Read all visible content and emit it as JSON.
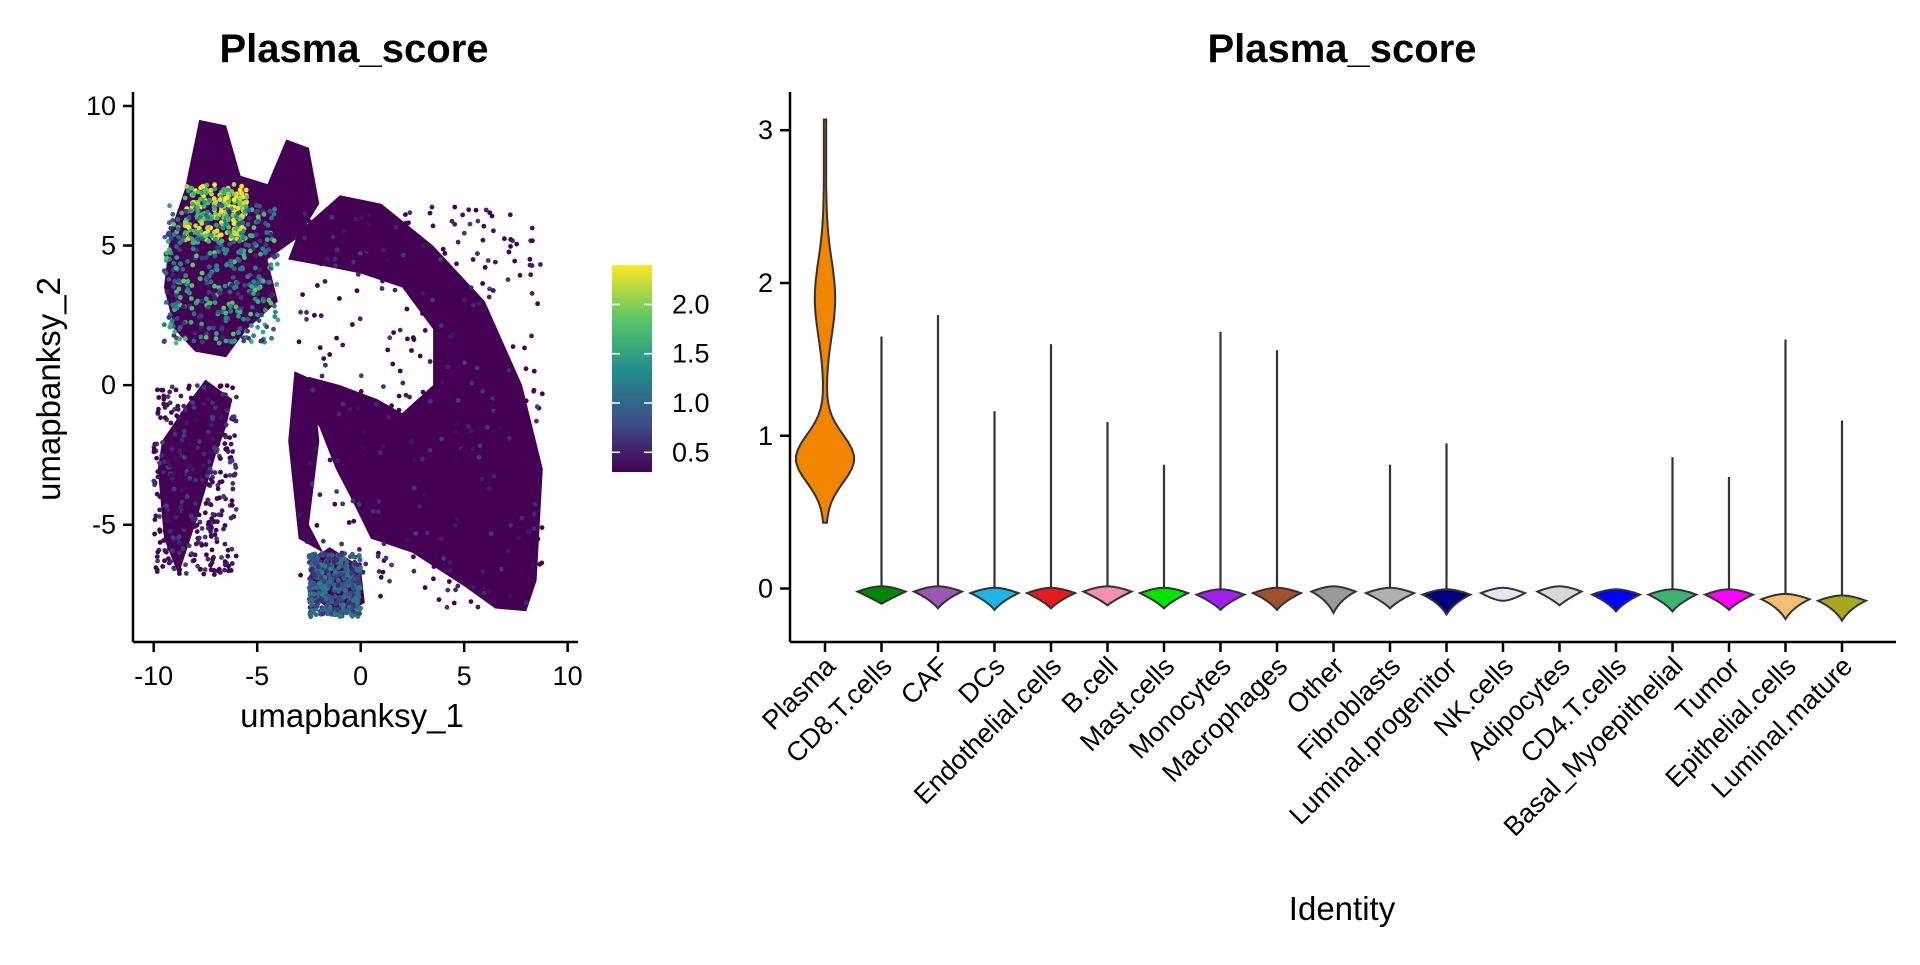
{
  "chart_data": [
    {
      "type": "scatter",
      "title": "Plasma_score",
      "xlabel": "umapbanksy_1",
      "ylabel": "umapbanksy_2",
      "xlim": [
        -11,
        10.5
      ],
      "ylim": [
        -9.2,
        10.5
      ],
      "x_ticks": [
        -10,
        -5,
        0,
        5,
        10
      ],
      "x_tick_labels": [
        "-10",
        "-5",
        "0",
        "5",
        "10"
      ],
      "y_ticks": [
        -5,
        0,
        5,
        10
      ],
      "y_tick_labels": [
        "-5",
        "0",
        "5",
        "10"
      ],
      "colorbar": {
        "colormap": "viridis",
        "range": [
          0.3,
          2.4
        ],
        "ticks": [
          0.5,
          1.0,
          1.5,
          2.0
        ],
        "tick_labels": [
          "0.5",
          "1.0",
          "1.5",
          "2.0"
        ]
      },
      "colors": {
        "low": "#440154",
        "mid_low": "#3b528b",
        "mid": "#21918c",
        "mid_high": "#5ec962",
        "high": "#fde725"
      },
      "regions": [
        {
          "name": "left-high-cluster",
          "x_range": [
            -8.5,
            -5.5
          ],
          "y_range": [
            5.2,
            7.2
          ],
          "score": 2.1
        },
        {
          "name": "left-upper-band",
          "x_range": [
            -9.5,
            -4.0
          ],
          "y_range": [
            1.5,
            6.5
          ],
          "score": 1.2
        },
        {
          "name": "main-arc",
          "x_range": [
            -3.0,
            8.8
          ],
          "y_range": [
            -8.0,
            6.5
          ],
          "score": 0.35
        },
        {
          "name": "left-arm",
          "x_range": [
            -10.0,
            -6.0
          ],
          "y_range": [
            -6.8,
            0.0
          ],
          "score": 0.4
        },
        {
          "name": "bottom-blob",
          "x_range": [
            -2.5,
            0.0
          ],
          "y_range": [
            -8.3,
            -6.0
          ],
          "score": 0.9
        }
      ]
    },
    {
      "type": "violin",
      "title": "Plasma_score",
      "xlabel": "Identity",
      "ylabel": "",
      "ylim": [
        -0.35,
        3.25
      ],
      "y_ticks": [
        0,
        1,
        2,
        3
      ],
      "y_tick_labels": [
        "0",
        "1",
        "2",
        "3"
      ],
      "categories": [
        "Plasma",
        "CD8.T.cells",
        "CAF",
        "DCs",
        "Endothelial.cells",
        "B.cell",
        "Mast.cells",
        "Monocytes",
        "Macrophages",
        "Other",
        "Fibroblasts",
        "Luminal.progenitor",
        "NK.cells",
        "Adipocytes",
        "CD4.T.cells",
        "Basal_Myoepithelial",
        "Tumor",
        "Epithelial.cells",
        "Luminal.mature"
      ],
      "fill_colors": [
        "#F28500",
        "#008800",
        "#9B59B6",
        "#1EB4E6",
        "#E41A1C",
        "#F48FB1",
        "#00E600",
        "#A020F0",
        "#A0522D",
        "#999999",
        "#B0B0B0",
        "#00007F",
        "#E6E6FA",
        "#D9D9D9",
        "#0000FF",
        "#3CB371",
        "#FF00FF",
        "#F6BE73",
        "#A8A81E"
      ],
      "min": [
        0.43,
        -0.1,
        -0.13,
        -0.14,
        -0.13,
        -0.11,
        -0.13,
        -0.14,
        -0.14,
        -0.16,
        -0.13,
        -0.17,
        -0.08,
        -0.11,
        -0.15,
        -0.15,
        -0.14,
        -0.2,
        -0.21
      ],
      "max": [
        3.07,
        1.65,
        1.79,
        1.16,
        1.6,
        1.09,
        0.81,
        1.68,
        1.56,
        0.0,
        0.81,
        0.95,
        0.0,
        0.0,
        0.0,
        0.86,
        0.73,
        1.63,
        1.1
      ],
      "center": [
        0.85,
        -0.02,
        -0.02,
        -0.03,
        -0.03,
        -0.02,
        -0.03,
        -0.04,
        -0.03,
        -0.02,
        -0.03,
        -0.04,
        -0.03,
        -0.02,
        -0.04,
        -0.04,
        -0.04,
        -0.07,
        -0.08
      ]
    }
  ]
}
